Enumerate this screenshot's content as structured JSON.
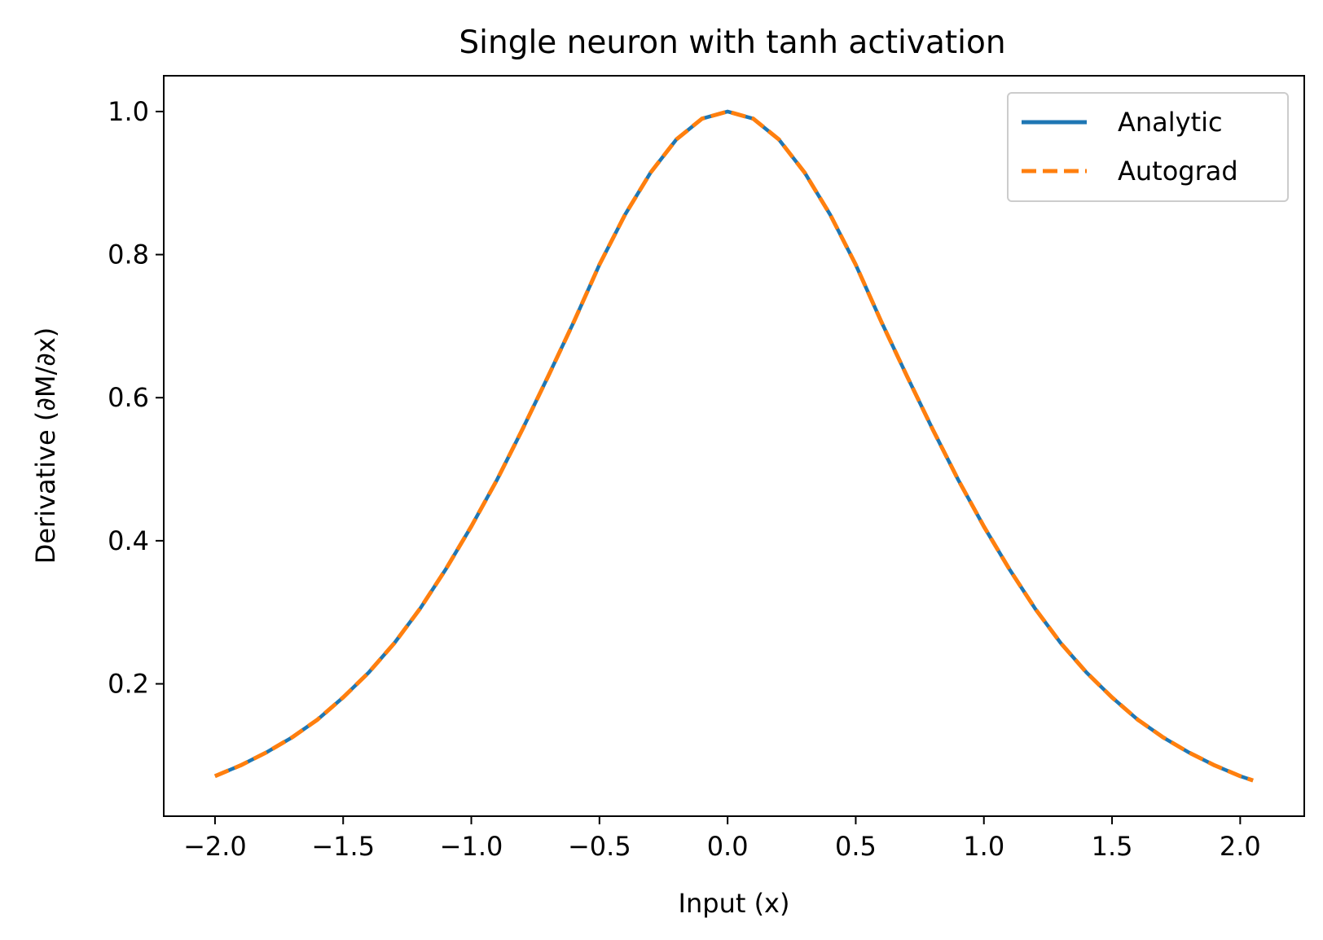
{
  "chart_data": {
    "type": "line",
    "title": "Single neuron with tanh activation",
    "xlabel": "Input (x)",
    "ylabel": "Derivative (∂M/∂x)",
    "xlim": [
      -2.2,
      2.25
    ],
    "ylim": [
      0.015,
      1.05
    ],
    "xticks": [
      -2.0,
      -1.5,
      -1.0,
      -0.5,
      0.0,
      0.5,
      1.0,
      1.5,
      2.0
    ],
    "xtick_labels": [
      "−2.0",
      "−1.5",
      "−1.0",
      "−0.5",
      "0.0",
      "0.5",
      "1.0",
      "1.5",
      "2.0"
    ],
    "yticks": [
      0.2,
      0.4,
      0.6,
      0.8,
      1.0
    ],
    "ytick_labels": [
      "0.2",
      "0.4",
      "0.6",
      "0.8",
      "1.0"
    ],
    "grid": false,
    "legend_position": "top-right",
    "x": [
      -2.0,
      -1.9,
      -1.8,
      -1.7,
      -1.6,
      -1.5,
      -1.4,
      -1.3,
      -1.2,
      -1.1,
      -1.0,
      -0.9,
      -0.8,
      -0.7,
      -0.6,
      -0.5,
      -0.4,
      -0.3,
      -0.2,
      -0.1,
      0.0,
      0.1,
      0.2,
      0.3,
      0.4,
      0.5,
      0.6,
      0.7,
      0.8,
      0.9,
      1.0,
      1.1,
      1.2,
      1.3,
      1.4,
      1.5,
      1.6,
      1.7,
      1.8,
      1.9,
      2.0,
      2.05
    ],
    "series": [
      {
        "name": "Analytic",
        "color": "#1f77b4",
        "style": "solid",
        "values": [
          0.071,
          0.086,
          0.104,
          0.125,
          0.15,
          0.181,
          0.216,
          0.257,
          0.305,
          0.36,
          0.42,
          0.485,
          0.556,
          0.63,
          0.706,
          0.786,
          0.856,
          0.915,
          0.961,
          0.99,
          1.0,
          0.99,
          0.961,
          0.915,
          0.856,
          0.786,
          0.706,
          0.63,
          0.556,
          0.485,
          0.42,
          0.36,
          0.305,
          0.257,
          0.216,
          0.181,
          0.15,
          0.125,
          0.104,
          0.086,
          0.071,
          0.065
        ]
      },
      {
        "name": "Autograd",
        "color": "#ff7f0e",
        "style": "dashed",
        "values": [
          0.071,
          0.086,
          0.104,
          0.125,
          0.15,
          0.181,
          0.216,
          0.257,
          0.305,
          0.36,
          0.42,
          0.485,
          0.556,
          0.63,
          0.706,
          0.786,
          0.856,
          0.915,
          0.961,
          0.99,
          1.0,
          0.99,
          0.961,
          0.915,
          0.856,
          0.786,
          0.706,
          0.63,
          0.556,
          0.485,
          0.42,
          0.36,
          0.305,
          0.257,
          0.216,
          0.181,
          0.15,
          0.125,
          0.104,
          0.086,
          0.071,
          0.065
        ]
      }
    ]
  }
}
